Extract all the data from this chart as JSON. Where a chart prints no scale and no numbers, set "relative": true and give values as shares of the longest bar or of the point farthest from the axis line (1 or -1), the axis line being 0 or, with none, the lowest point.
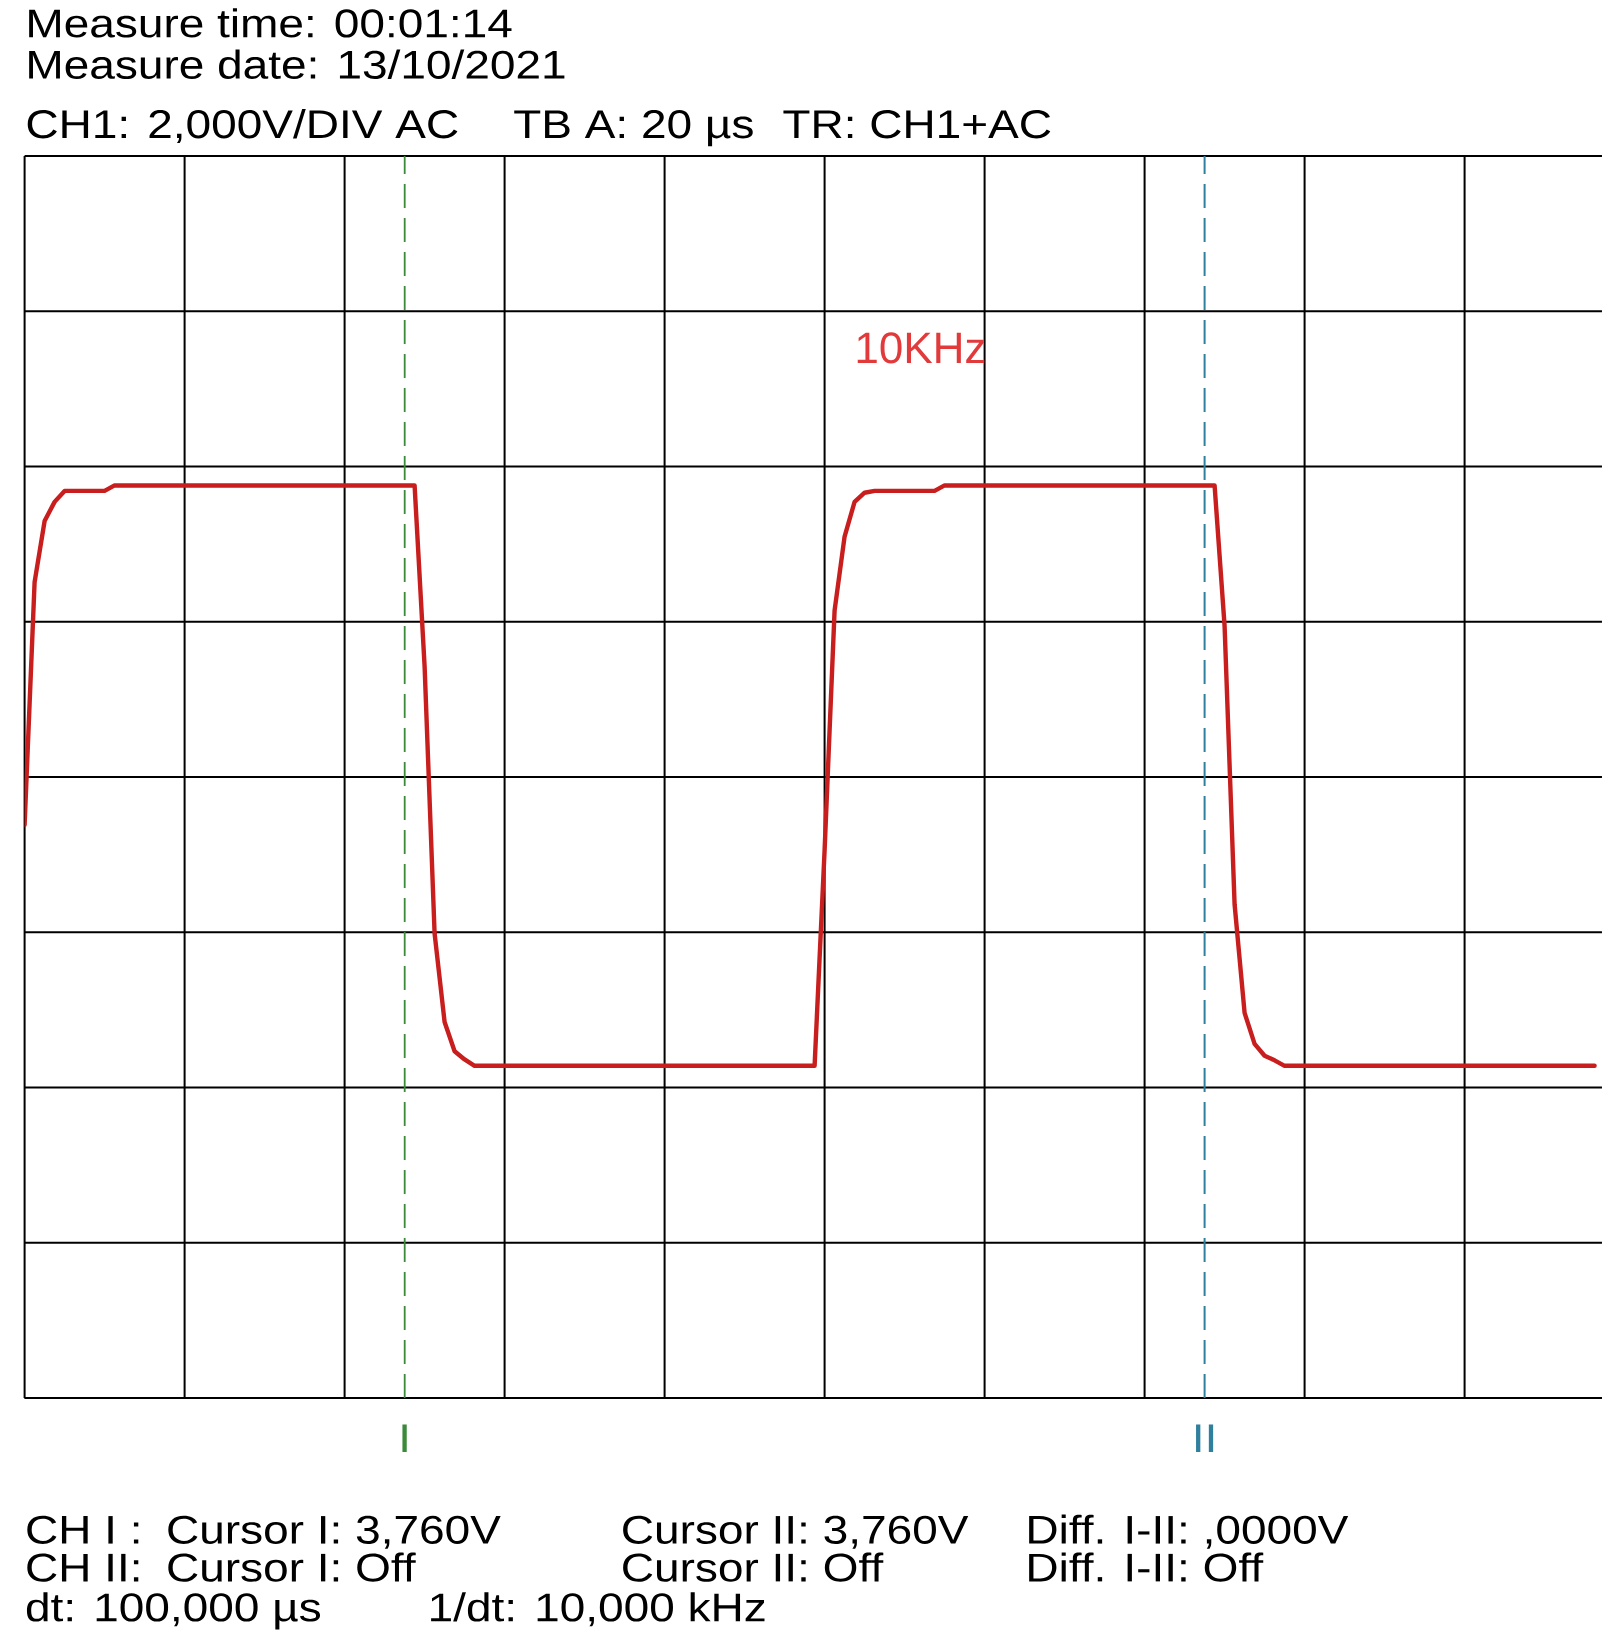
{
  "chart_data": {
    "type": "line",
    "title": "Measure time: 00:01:14",
    "subtitle": "Measure date: 13/10/2021",
    "annotations": [
      "CH1: 2,000V/DIV AC",
      "TB A: 20 µs",
      "TR: CH1+AC",
      "10KHz",
      "CH I :",
      "Cursor I: 3,760V",
      "Cursor II: 3,760V",
      "Diff. I-II: ,0000V",
      "CH II:",
      "Cursor I: Off",
      "Cursor II: Off",
      "Diff. I-II: Off",
      "dt: 100,000 µs",
      "1/dt: 10,000 kHz"
    ],
    "categories": [
      null,
      null,
      null,
      null,
      null,
      null,
      null,
      null,
      null,
      null,
      null,
      null,
      null,
      null,
      null,
      null,
      null,
      null,
      null,
      null,
      null,
      null,
      null,
      null,
      null,
      null,
      null,
      null,
      null,
      null,
      null,
      null,
      null,
      null,
      null,
      null,
      null,
      null,
      "I",
      null,
      null,
      null,
      null,
      null,
      null,
      null,
      null,
      null,
      null,
      null,
      null,
      null,
      null,
      null,
      null,
      null,
      null,
      null,
      null,
      null,
      null,
      null,
      null,
      null,
      null,
      null,
      null,
      null,
      null,
      null,
      null,
      null,
      null,
      null,
      null,
      null,
      null,
      null,
      null,
      null,
      null,
      null,
      null,
      null,
      null,
      null,
      null,
      null,
      null,
      null,
      null,
      null,
      null,
      null,
      null,
      null,
      null,
      null,
      null,
      null,
      null,
      null,
      null,
      null,
      null,
      null,
      null,
      null,
      null,
      null,
      null,
      null,
      null,
      null,
      null,
      null,
      null,
      null,
      "II",
      null,
      null,
      null,
      null,
      null,
      null,
      null,
      null,
      null,
      null,
      null,
      null,
      null,
      null,
      null,
      null,
      null,
      null,
      null,
      null,
      null,
      null,
      null,
      null,
      null,
      null,
      null,
      null,
      null,
      null,
      null,
      null,
      null,
      null,
      null,
      null,
      null,
      null,
      null
    ],
    "relative": true,
    "series": [
      {
        "color": "#c81e1e",
        "values": [
          0.628,
          0.894,
          0.961,
          0.982,
          0.994,
          0.994,
          0.994,
          0.994,
          0.994,
          1,
          1,
          1,
          1,
          1,
          1,
          1,
          1,
          1,
          1,
          1,
          1,
          1,
          1,
          1,
          1,
          1,
          1,
          1,
          1,
          1,
          1,
          1,
          1,
          1,
          1,
          1,
          1,
          1,
          1,
          1,
          0.802,
          0.509,
          0.412,
          0.38,
          0.371,
          0.364,
          0.364,
          0.364,
          0.364,
          0.364,
          0.364,
          0.364,
          0.364,
          0.364,
          0.364,
          0.364,
          0.364,
          0.364,
          0.364,
          0.364,
          0.364,
          0.364,
          0.364,
          0.364,
          0.364,
          0.364,
          0.364,
          0.364,
          0.364,
          0.364,
          0.364,
          0.364,
          0.364,
          0.364,
          0.364,
          0.364,
          0.364,
          0.364,
          0.364,
          0.364,
          0.6,
          0.863,
          0.944,
          0.982,
          0.992,
          0.994,
          0.994,
          0.994,
          0.994,
          0.994,
          0.994,
          0.994,
          1,
          1,
          1,
          1,
          1,
          1,
          1,
          1,
          1,
          1,
          1,
          1,
          1,
          1,
          1,
          1,
          1,
          1,
          1,
          1,
          1,
          1,
          1,
          1,
          1,
          1,
          1,
          1,
          0.846,
          0.541,
          0.422,
          0.388,
          0.375,
          0.37,
          0.364,
          0.364,
          0.364,
          0.364,
          0.364,
          0.364,
          0.364,
          0.364,
          0.364,
          0.364,
          0.364,
          0.364,
          0.364,
          0.364,
          0.364,
          0.364,
          0.364,
          0.364,
          0.364,
          0.364,
          0.364,
          0.364,
          0.364,
          0.364,
          0.364,
          0.364,
          0.364,
          0.364,
          0.364,
          0.364,
          0.364,
          0.364
        ]
      }
    ],
    "ref_lines": [
      {
        "axis": "x",
        "value": "I",
        "color": "#3a8a3a",
        "line_style": "dashed"
      },
      {
        "axis": "x",
        "value": "II",
        "color": "#2f7f9f",
        "line_style": "dashed"
      }
    ],
    "grid": true,
    "tick_labels": "x"
  }
}
